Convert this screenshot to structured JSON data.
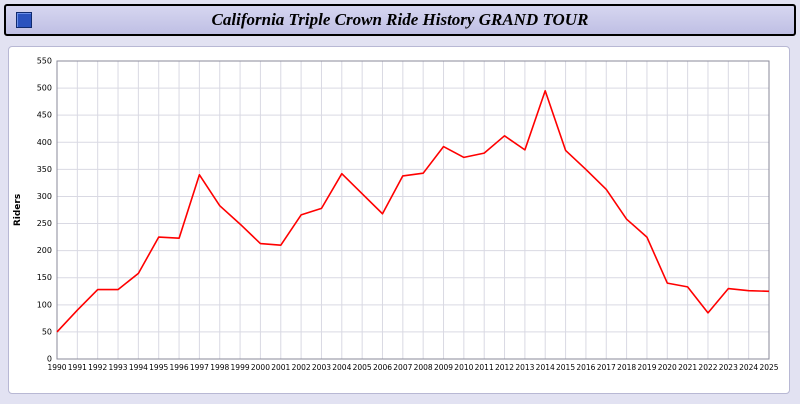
{
  "header": {
    "title": "California Triple Crown Ride History GRAND TOUR",
    "icon": "blue-square-icon"
  },
  "chart_data": {
    "type": "line",
    "title": "California Triple Crown Ride History GRAND TOUR",
    "xlabel": "",
    "ylabel": "Riders",
    "ylim": [
      0,
      550
    ],
    "ytick_step": 50,
    "grid": true,
    "legend_position": "none",
    "line_color": "#ff0000",
    "grid_color": "#d9d9e3",
    "axis_color": "#8a8a9a",
    "x": [
      1990,
      1991,
      1992,
      1993,
      1994,
      1995,
      1996,
      1997,
      1998,
      1999,
      2000,
      2001,
      2002,
      2003,
      2004,
      2005,
      2006,
      2007,
      2008,
      2009,
      2010,
      2011,
      2012,
      2013,
      2014,
      2015,
      2016,
      2017,
      2018,
      2019,
      2020,
      2021,
      2022,
      2023,
      2024,
      2025
    ],
    "series": [
      {
        "name": "Riders",
        "values": [
          50,
          90,
          128,
          128,
          158,
          225,
          223,
          340,
          283,
          249,
          213,
          210,
          266,
          278,
          342,
          305,
          268,
          338,
          343,
          392,
          372,
          380,
          412,
          386,
          495,
          385,
          350,
          313,
          258,
          225,
          140,
          133,
          85,
          130,
          126,
          125
        ]
      }
    ]
  }
}
